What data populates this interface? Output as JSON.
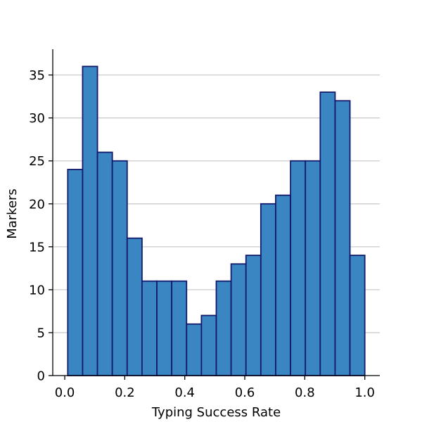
{
  "chart_data": {
    "type": "bar",
    "title": "",
    "xlabel": "Typing Success Rate",
    "ylabel": "Markers",
    "bin_edges": [
      0.01,
      0.0595,
      0.109,
      0.1585,
      0.208,
      0.2575,
      0.307,
      0.3565,
      0.406,
      0.4555,
      0.505,
      0.5545,
      0.604,
      0.6535,
      0.703,
      0.7525,
      0.802,
      0.8515,
      0.901,
      0.9505,
      1.0
    ],
    "values": [
      24,
      36,
      26,
      25,
      16,
      11,
      11,
      11,
      6,
      7,
      11,
      13,
      14,
      20,
      21,
      25,
      25,
      33,
      32,
      14
    ],
    "xlim": [
      -0.04,
      1.05
    ],
    "ylim": [
      0,
      38
    ],
    "xticks": [
      0.0,
      0.2,
      0.4,
      0.6,
      0.8,
      1.0
    ],
    "xtick_labels": [
      "0.0",
      "0.2",
      "0.4",
      "0.6",
      "0.8",
      "1.0"
    ],
    "yticks": [
      0,
      5,
      10,
      15,
      20,
      25,
      30,
      35
    ],
    "ytick_labels": [
      "0",
      "5",
      "10",
      "15",
      "20",
      "25",
      "30",
      "35"
    ],
    "grid": "y",
    "colors": {
      "bar_fill": "#3a86c3",
      "bar_edge": "#131a6b",
      "grid": "#cccccc",
      "axis": "#000000"
    }
  }
}
